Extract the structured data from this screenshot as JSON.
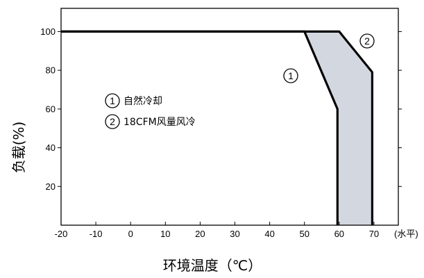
{
  "chart_data": {
    "type": "line",
    "title": "",
    "xlabel": "环境温度（℃）",
    "ylabel": "负载(%)",
    "x_unit_note": "(水平)",
    "xlim": [
      -20,
      77
    ],
    "ylim": [
      0,
      112
    ],
    "x_ticks": [
      -20,
      -10,
      0,
      10,
      20,
      30,
      40,
      50,
      60,
      70
    ],
    "y_ticks": [
      20,
      40,
      60,
      80,
      100
    ],
    "fill_color": "#d3d8e0",
    "line_color": "#000000",
    "series": [
      {
        "marker": "1",
        "points": [
          [
            -20,
            100
          ],
          [
            50,
            100
          ],
          [
            59.5,
            60
          ],
          [
            59.5,
            0
          ]
        ]
      },
      {
        "marker": "2",
        "points": [
          [
            -20,
            100
          ],
          [
            60,
            100
          ],
          [
            69.5,
            79
          ],
          [
            69.5,
            0
          ]
        ]
      }
    ],
    "legend": [
      {
        "marker": "1",
        "label": "自然冷却"
      },
      {
        "marker": "2",
        "label": "18CFM风量风冷"
      }
    ]
  }
}
